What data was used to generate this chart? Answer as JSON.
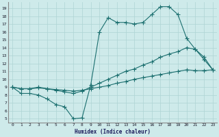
{
  "xlabel": "Humidex (Indice chaleur)",
  "xlim": [
    -0.5,
    23.5
  ],
  "ylim": [
    4.5,
    19.8
  ],
  "yticks": [
    5,
    6,
    7,
    8,
    9,
    10,
    11,
    12,
    13,
    14,
    15,
    16,
    17,
    18,
    19
  ],
  "xticks": [
    0,
    1,
    2,
    3,
    4,
    5,
    6,
    7,
    8,
    9,
    10,
    11,
    12,
    13,
    14,
    15,
    16,
    17,
    18,
    19,
    20,
    21,
    22,
    23
  ],
  "bg_color": "#ceeaea",
  "grid_color": "#aed4d4",
  "line_color": "#1a6e6e",
  "line1_x": [
    0,
    1,
    2,
    3,
    4,
    5,
    6,
    7,
    8,
    9,
    10,
    11,
    12,
    13,
    14,
    15,
    16,
    17,
    18,
    19,
    20,
    21,
    22,
    23
  ],
  "line1_y": [
    9.0,
    8.2,
    8.2,
    8.0,
    7.5,
    6.8,
    6.5,
    5.0,
    5.1,
    9.3,
    16.0,
    17.8,
    17.2,
    17.2,
    17.0,
    17.2,
    18.2,
    19.2,
    19.2,
    18.2,
    15.2,
    13.8,
    12.5,
    11.2
  ],
  "line2_x": [
    0,
    1,
    2,
    3,
    4,
    5,
    6,
    7,
    8,
    9,
    10,
    11,
    12,
    13,
    14,
    15,
    16,
    17,
    18,
    19,
    20,
    21,
    22,
    23
  ],
  "line2_y": [
    9.0,
    8.8,
    8.8,
    9.0,
    8.8,
    8.6,
    8.4,
    8.2,
    8.5,
    9.0,
    9.5,
    10.0,
    10.5,
    11.0,
    11.3,
    11.8,
    12.2,
    12.8,
    13.2,
    13.5,
    14.0,
    13.8,
    12.8,
    11.2
  ],
  "line3_x": [
    0,
    1,
    2,
    3,
    4,
    5,
    6,
    7,
    8,
    9,
    10,
    11,
    12,
    13,
    14,
    15,
    16,
    17,
    18,
    19,
    20,
    21,
    22,
    23
  ],
  "line3_y": [
    9.0,
    8.8,
    8.8,
    8.9,
    8.8,
    8.7,
    8.6,
    8.5,
    8.6,
    8.8,
    9.0,
    9.2,
    9.5,
    9.7,
    10.0,
    10.2,
    10.4,
    10.6,
    10.8,
    11.0,
    11.2,
    11.1,
    11.1,
    11.2
  ],
  "marker_size": 2.5,
  "linewidth": 0.8
}
